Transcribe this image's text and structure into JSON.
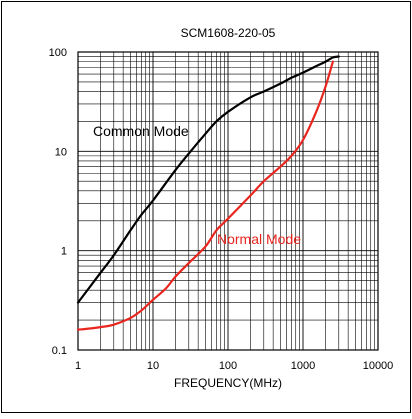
{
  "chart_data": {
    "type": "line",
    "title": "SCM1608-220-05",
    "xlabel": "FREQUENCY(MHz)",
    "ylabel": "",
    "xscale": "log",
    "yscale": "log",
    "xlim": [
      1,
      10000
    ],
    "ylim": [
      0.1,
      100
    ],
    "grid": true,
    "x_tick_labels": [
      "1",
      "10",
      "100",
      "1000",
      "10000"
    ],
    "y_tick_labels": [
      "0.1",
      "1",
      "10",
      "100"
    ],
    "series": [
      {
        "name": "Common Mode",
        "color": "#000000",
        "x": [
          1,
          1.5,
          2,
          3,
          5,
          7,
          10,
          20,
          30,
          50,
          70,
          100,
          200,
          300,
          500,
          700,
          1000,
          1500,
          2000,
          2500,
          3000
        ],
        "y": [
          0.3,
          0.45,
          0.6,
          0.9,
          1.6,
          2.3,
          3.2,
          6.5,
          9.5,
          15,
          20,
          25,
          35,
          40,
          48,
          55,
          62,
          72,
          80,
          88,
          90
        ]
      },
      {
        "name": "Normal Mode",
        "color": "#e8261f",
        "x": [
          1,
          1.5,
          2,
          3,
          5,
          7,
          10,
          15,
          20,
          30,
          50,
          70,
          100,
          200,
          300,
          500,
          700,
          1000,
          1500,
          2000,
          2500
        ],
        "y": [
          0.16,
          0.165,
          0.17,
          0.18,
          0.21,
          0.25,
          0.32,
          0.42,
          0.55,
          0.75,
          1.1,
          1.6,
          2.1,
          3.6,
          5,
          7,
          9,
          13,
          25,
          45,
          80
        ]
      }
    ]
  }
}
